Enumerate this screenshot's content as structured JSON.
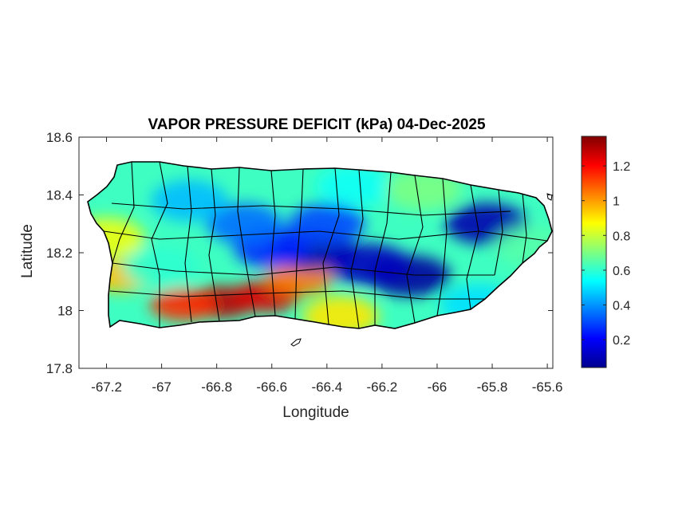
{
  "chart_data": {
    "type": "heatmap",
    "title": "VAPOR PRESSURE DEFICIT (kPa) 04-Dec-2025",
    "xlabel": "Longitude",
    "ylabel": "Latitude",
    "xlim": [
      -67.3,
      -65.58
    ],
    "ylim": [
      17.8,
      18.6
    ],
    "xticks": [
      -67.2,
      -67,
      -66.8,
      -66.6,
      -66.4,
      -66.2,
      -66,
      -65.8,
      -65.6
    ],
    "xtick_labels": [
      "-67.2",
      "-67",
      "-66.8",
      "-66.6",
      "-66.4",
      "-66.2",
      "-66",
      "-65.8",
      "-65.6"
    ],
    "yticks": [
      17.8,
      18,
      18.2,
      18.4,
      18.6
    ],
    "ytick_labels": [
      "17.8",
      "18",
      "18.2",
      "18.4",
      "18.6"
    ],
    "colormap": "jet",
    "colorbar": {
      "range": [
        0.04,
        1.37
      ],
      "ticks": [
        0.2,
        0.4,
        0.6,
        0.8,
        1,
        1.2
      ],
      "tick_labels": [
        "0.2",
        "0.4",
        "0.6",
        "0.8",
        "1",
        "1.2"
      ],
      "placement": "right"
    },
    "grid": false,
    "legend": "none",
    "region": "Puerto Rico",
    "hotspots": [
      {
        "lon": -66.78,
        "lat": 18.03,
        "value": 1.3
      },
      {
        "lon": -66.62,
        "lat": 18.05,
        "value": 1.25
      },
      {
        "lon": -66.92,
        "lat": 18.02,
        "value": 1.15
      },
      {
        "lon": -66.5,
        "lat": 18.11,
        "value": 1.05
      },
      {
        "lon": -67.15,
        "lat": 18.12,
        "value": 0.95
      },
      {
        "lon": -67.2,
        "lat": 18.25,
        "value": 0.85
      },
      {
        "lon": -66.35,
        "lat": 17.98,
        "value": 0.9
      },
      {
        "lon": -66.45,
        "lat": 18.21,
        "value": 0.1
      },
      {
        "lon": -66.1,
        "lat": 18.12,
        "value": 0.08
      },
      {
        "lon": -66.25,
        "lat": 18.16,
        "value": 0.12
      },
      {
        "lon": -65.82,
        "lat": 18.3,
        "value": 0.1
      },
      {
        "lon": -66.6,
        "lat": 18.22,
        "value": 0.25
      },
      {
        "lon": -66.7,
        "lat": 18.3,
        "value": 0.35
      },
      {
        "lon": -66.9,
        "lat": 18.38,
        "value": 0.45
      },
      {
        "lon": -66.3,
        "lat": 18.43,
        "value": 0.55
      },
      {
        "lon": -66.05,
        "lat": 18.42,
        "value": 0.7
      },
      {
        "lon": -65.65,
        "lat": 18.22,
        "value": 0.65
      },
      {
        "lon": -65.85,
        "lat": 18.02,
        "value": 0.5
      },
      {
        "lon": -67.0,
        "lat": 18.15,
        "value": 0.6
      },
      {
        "lon": -66.4,
        "lat": 18.3,
        "value": 0.3
      }
    ]
  }
}
